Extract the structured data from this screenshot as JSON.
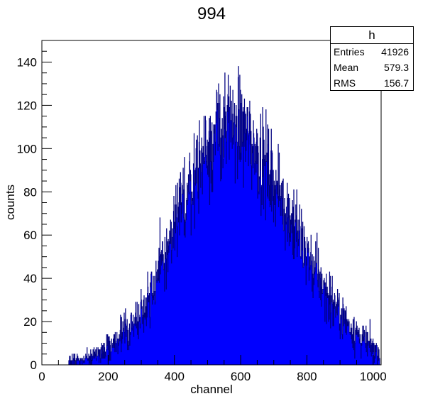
{
  "chart_data": {
    "type": "bar",
    "title": "994",
    "xlabel": "channel",
    "ylabel": "counts",
    "xlim": [
      0,
      1024
    ],
    "ylim": [
      0,
      150
    ],
    "x_ticks": [
      "0",
      "200",
      "400",
      "600",
      "800",
      "1000"
    ],
    "y_ticks": [
      "0",
      "20",
      "40",
      "60",
      "80",
      "100",
      "120",
      "140"
    ],
    "bar_color": "#0000ff",
    "outline_color": "#00007f",
    "grid": false,
    "legend": "none",
    "stats_box": {
      "name": "h",
      "entries_label": "Entries",
      "entries": "41926",
      "mean_label": "Mean",
      "mean": "579.3",
      "rms_label": "RMS",
      "rms": "156.7"
    },
    "envelope": {
      "x": [
        80,
        100,
        120,
        140,
        160,
        180,
        200,
        220,
        240,
        260,
        280,
        300,
        320,
        340,
        360,
        380,
        400,
        420,
        440,
        460,
        480,
        500,
        520,
        540,
        560,
        580,
        600,
        620,
        640,
        660,
        680,
        700,
        720,
        740,
        760,
        780,
        800,
        820,
        840,
        860,
        880,
        900,
        920,
        940,
        960,
        980,
        1000,
        1020
      ],
      "y": [
        1,
        2,
        2,
        3,
        4,
        6,
        8,
        10,
        13,
        16,
        20,
        25,
        31,
        38,
        45,
        53,
        62,
        72,
        80,
        88,
        95,
        101,
        106,
        108,
        110,
        111,
        110,
        106,
        101,
        96,
        91,
        85,
        79,
        72,
        65,
        58,
        51,
        45,
        39,
        33,
        28,
        24,
        20,
        16,
        13,
        10,
        8,
        6
      ]
    }
  }
}
